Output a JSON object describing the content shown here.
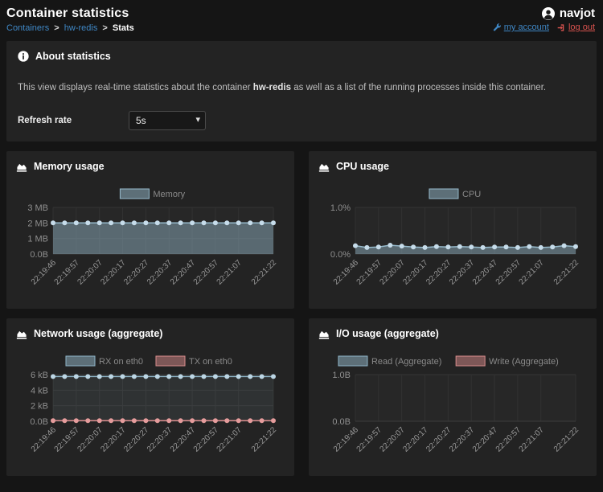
{
  "header": {
    "title": "Container statistics",
    "breadcrumb": {
      "containers_label": "Containers",
      "separator": ">",
      "container_label": "hw-redis",
      "page_label": "Stats"
    },
    "user": {
      "name": "navjot",
      "my_account_label": "my account",
      "log_out_label": "log out"
    }
  },
  "about": {
    "title": "About statistics",
    "description_prefix": "This view displays real-time statistics about the container ",
    "container_name": "hw-redis",
    "description_suffix": " as well as a list of the running processes inside this container.",
    "refresh_rate_label": "Refresh rate",
    "refresh_rate_value": "5s"
  },
  "colors": {
    "link_blue": "#3f87c5",
    "logout_red": "#d9534f",
    "panel_bg": "#232323",
    "page_bg": "#151515",
    "series_blue": "#97bbcd",
    "series_red": "#d98c8c"
  },
  "charts": [
    {
      "title": "Memory usage",
      "chart_data": {
        "type": "area",
        "n_points": 20,
        "x_tick_indices": [
          0,
          2,
          4,
          6,
          8,
          10,
          12,
          14,
          16,
          19
        ],
        "x_tick_labels": [
          "22:19:46",
          "22:19:57",
          "22:20:07",
          "22:20:17",
          "22:20:27",
          "22:20:37",
          "22:20:47",
          "22:20:57",
          "22:21:07",
          "22:21:22"
        ],
        "y_ticks": [
          3,
          2,
          1,
          0
        ],
        "y_tick_labels": [
          "3 MB",
          "2 MB",
          "1 MB",
          "0.0B"
        ],
        "ylim": [
          0,
          3
        ],
        "legend_position": "top",
        "series": [
          {
            "name": "Memory",
            "stroke": "#97bbcd",
            "point": "#c6dcea",
            "fill": "rgba(151,187,205,0.45)",
            "swatch_fill": "rgba(151,187,205,0.5)",
            "values": [
              2,
              2,
              2,
              2,
              2,
              2,
              2,
              2,
              2,
              2,
              2,
              2,
              2,
              2,
              2,
              2,
              2,
              2,
              2,
              2
            ]
          }
        ]
      }
    },
    {
      "title": "CPU usage",
      "chart_data": {
        "type": "area",
        "n_points": 20,
        "x_tick_indices": [
          0,
          2,
          4,
          6,
          8,
          10,
          12,
          14,
          16,
          19
        ],
        "x_tick_labels": [
          "22:19:46",
          "22:19:57",
          "22:20:07",
          "22:20:17",
          "22:20:27",
          "22:20:37",
          "22:20:47",
          "22:20:57",
          "22:21:07",
          "22:21:22"
        ],
        "y_ticks": [
          1,
          0
        ],
        "y_tick_labels": [
          "1.0%",
          "0.0%"
        ],
        "ylim": [
          0,
          1
        ],
        "legend_position": "top",
        "series": [
          {
            "name": "CPU",
            "stroke": "#97bbcd",
            "point": "#c6dcea",
            "fill": "rgba(151,187,205,0.45)",
            "swatch_fill": "rgba(151,187,205,0.5)",
            "values": [
              0.18,
              0.14,
              0.15,
              0.19,
              0.17,
              0.15,
              0.14,
              0.16,
              0.15,
              0.16,
              0.15,
              0.14,
              0.15,
              0.15,
              0.14,
              0.16,
              0.14,
              0.15,
              0.18,
              0.16
            ]
          }
        ]
      }
    },
    {
      "title": "Network usage (aggregate)",
      "chart_data": {
        "type": "line",
        "n_points": 20,
        "x_tick_indices": [
          0,
          2,
          4,
          6,
          8,
          10,
          12,
          14,
          16,
          19
        ],
        "x_tick_labels": [
          "22:19:46",
          "22:19:57",
          "22:20:07",
          "22:20:17",
          "22:20:27",
          "22:20:37",
          "22:20:47",
          "22:20:57",
          "22:21:07",
          "22:21:22"
        ],
        "y_ticks": [
          6,
          4,
          2,
          0
        ],
        "y_tick_labels": [
          "6 kB",
          "4 kB",
          "2 kB",
          "0.0B"
        ],
        "ylim": [
          0,
          6
        ],
        "legend_position": "top",
        "series": [
          {
            "name": "RX on eth0",
            "stroke": "#8fb6c9",
            "point": "#bcd6e4",
            "fill": "rgba(151,187,205,0.08)",
            "swatch_fill": "rgba(151,187,205,0.5)",
            "values": [
              5.75,
              5.75,
              5.75,
              5.75,
              5.75,
              5.75,
              5.75,
              5.75,
              5.75,
              5.75,
              5.75,
              5.75,
              5.75,
              5.75,
              5.75,
              5.75,
              5.75,
              5.75,
              5.75,
              5.75
            ]
          },
          {
            "name": "TX on eth0",
            "stroke": "#d98c8c",
            "point": "#e59c9c",
            "fill": "rgba(217,140,140,0.08)",
            "swatch_fill": "rgba(217,140,140,0.5)",
            "values": [
              0.07,
              0.07,
              0.07,
              0.07,
              0.07,
              0.07,
              0.07,
              0.07,
              0.07,
              0.07,
              0.07,
              0.07,
              0.07,
              0.07,
              0.07,
              0.07,
              0.07,
              0.07,
              0.07,
              0.07
            ]
          }
        ]
      }
    },
    {
      "title": "I/O usage (aggregate)",
      "chart_data": {
        "type": "line",
        "n_points": 20,
        "x_tick_indices": [
          0,
          2,
          4,
          6,
          8,
          10,
          12,
          14,
          16,
          19
        ],
        "x_tick_labels": [
          "22:19:46",
          "22:19:57",
          "22:20:07",
          "22:20:17",
          "22:20:27",
          "22:20:37",
          "22:20:47",
          "22:20:57",
          "22:21:07",
          "22:21:22"
        ],
        "y_ticks": [
          1,
          0
        ],
        "y_tick_labels": [
          "1.0B",
          "0.0B"
        ],
        "ylim": [
          0,
          1
        ],
        "legend_position": "top",
        "series": [
          {
            "name": "Read (Aggregate)",
            "stroke": "#8fb6c9",
            "point": "#bcd6e4",
            "fill": "rgba(151,187,205,0.08)",
            "swatch_fill": "rgba(151,187,205,0.5)",
            "values": []
          },
          {
            "name": "Write (Aggregate)",
            "stroke": "#d98c8c",
            "point": "#e59c9c",
            "fill": "rgba(217,140,140,0.08)",
            "swatch_fill": "rgba(217,140,140,0.5)",
            "values": []
          }
        ]
      }
    }
  ]
}
